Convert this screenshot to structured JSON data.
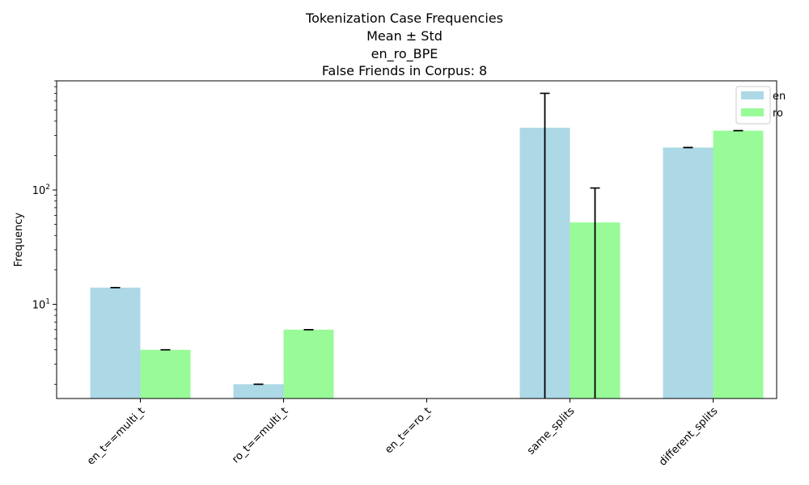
{
  "chart_data": {
    "type": "bar",
    "title_lines": [
      "Tokenization Case Frequencies",
      "Mean ± Std",
      "en_ro_BPE",
      "False Friends in Corpus: 8"
    ],
    "xlabel": "",
    "ylabel": "Frequency",
    "yscale": "log",
    "ylim": [
      1.5,
      900
    ],
    "yticks": [
      {
        "value": 10,
        "base": "10",
        "exp": "1"
      },
      {
        "value": 100,
        "base": "10",
        "exp": "2"
      }
    ],
    "categories": [
      "en_t==multi_t",
      "ro_t==multi_t",
      "en_t==ro_t",
      "same_splits",
      "different_splits"
    ],
    "series": [
      {
        "name": "en",
        "color": "#add8e6",
        "values": [
          14,
          2,
          0,
          350,
          235
        ],
        "errors": [
          0,
          0,
          0,
          350,
          0
        ]
      },
      {
        "name": "ro",
        "color": "#98fb98",
        "values": [
          4,
          6,
          0,
          52,
          330
        ],
        "errors": [
          0,
          0,
          0,
          52,
          0
        ]
      }
    ],
    "grid": false,
    "legend_position": "top-right"
  }
}
